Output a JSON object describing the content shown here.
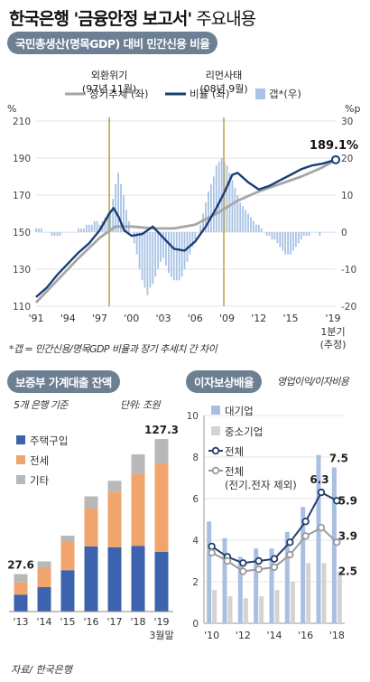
{
  "header": {
    "title_main": "한국은행 '금융안정 보고서'",
    "title_sub": " 주요내용"
  },
  "section1": {
    "pill": "국민총생산(명목GDP) 대비 민간신용 비율"
  },
  "section2": {
    "pill": "보증부 가계대출 잔액",
    "note": "5개 은행 기준",
    "unit": "단위: 조원"
  },
  "section3": {
    "pill": "이자보상배율",
    "note": "영업이익/이자비용"
  },
  "footnote": "*갭 = 민간신용/명목GDP 비율과 장기 추세치 간 차이",
  "source": "자료/ 한국은행",
  "chart_data": [
    {
      "type": "line",
      "legend": [
        "장기추세 (좌)",
        "비율 (좌)",
        "갭*(우)"
      ],
      "left_axis_label": "%",
      "right_axis_label": "%p",
      "ylim_left": [
        110,
        210
      ],
      "ylim_right": [
        -20,
        30
      ],
      "yticks_left": [
        "210",
        "190",
        "170",
        "150",
        "130",
        "110"
      ],
      "yticks_right": [
        "30",
        "20",
        "10",
        "0",
        "-10",
        "-20"
      ],
      "x_range": [
        1991,
        2019.25
      ],
      "x_ticks": [
        {
          "x": 1991,
          "label": "'91"
        },
        {
          "x": 1994,
          "label": "'94"
        },
        {
          "x": 1997,
          "label": "'97"
        },
        {
          "x": 2000,
          "label": "'00"
        },
        {
          "x": 2003,
          "label": "'03"
        },
        {
          "x": 2006,
          "label": "'06"
        },
        {
          "x": 2009,
          "label": "'09"
        },
        {
          "x": 2012,
          "label": "'12"
        },
        {
          "x": 2015,
          "label": "'15"
        },
        {
          "x": 2019,
          "label": "'19"
        }
      ],
      "x_extra_label": [
        "1분기",
        "(추정)"
      ],
      "events": [
        {
          "x": 1997.9,
          "label1": "외환위기",
          "label2": "(97년 11월)"
        },
        {
          "x": 2008.7,
          "label1": "리먼사태",
          "label2": "(08년 9월)"
        }
      ],
      "end_label": "189.1%",
      "trend": [
        [
          1991,
          112
        ],
        [
          1993,
          124
        ],
        [
          1995,
          136
        ],
        [
          1997,
          147
        ],
        [
          1998.5,
          153
        ],
        [
          2000,
          153
        ],
        [
          2002,
          152
        ],
        [
          2004,
          152
        ],
        [
          2006,
          154
        ],
        [
          2008,
          160
        ],
        [
          2010,
          167
        ],
        [
          2012,
          172
        ],
        [
          2014,
          176
        ],
        [
          2016,
          180
        ],
        [
          2018,
          185
        ],
        [
          2019.25,
          189
        ]
      ],
      "ratio": [
        [
          1991,
          115
        ],
        [
          1992,
          120
        ],
        [
          1993,
          127
        ],
        [
          1994,
          133
        ],
        [
          1995,
          139
        ],
        [
          1996,
          144
        ],
        [
          1997,
          151
        ],
        [
          1997.9,
          160
        ],
        [
          1998.3,
          163
        ],
        [
          1998.8,
          158
        ],
        [
          1999.3,
          151
        ],
        [
          2000,
          148
        ],
        [
          2001,
          149
        ],
        [
          2002,
          153
        ],
        [
          2003,
          147
        ],
        [
          2004,
          141
        ],
        [
          2005,
          140
        ],
        [
          2006,
          145
        ],
        [
          2007,
          153
        ],
        [
          2008,
          163
        ],
        [
          2008.8,
          172
        ],
        [
          2009.5,
          181
        ],
        [
          2010,
          182
        ],
        [
          2011,
          177
        ],
        [
          2012,
          173
        ],
        [
          2013,
          175
        ],
        [
          2014,
          178
        ],
        [
          2015,
          181
        ],
        [
          2016,
          184
        ],
        [
          2017,
          186
        ],
        [
          2018,
          187
        ],
        [
          2019.25,
          189.1
        ]
      ],
      "gap_start": 1991,
      "gap_step": 0.25,
      "gap": [
        1,
        1,
        1,
        0,
        0,
        0,
        -1,
        -1,
        -1,
        -1,
        0,
        0,
        0,
        0,
        0,
        0,
        1,
        1,
        1,
        2,
        2,
        2,
        3,
        3,
        2,
        3,
        4,
        5,
        6,
        9,
        13,
        16,
        13,
        10,
        6,
        3,
        0,
        -3,
        -6,
        -10,
        -13,
        -15,
        -17,
        -15,
        -14,
        -12,
        -10,
        -8,
        -7,
        -9,
        -11,
        -12,
        -13,
        -13,
        -13,
        -12,
        -10,
        -8,
        -6,
        -4,
        -2,
        0,
        2,
        5,
        8,
        11,
        13,
        15,
        18,
        19,
        20,
        19,
        18,
        16,
        14,
        12,
        10,
        8,
        7,
        6,
        5,
        4,
        3,
        2,
        2,
        1,
        0,
        -1,
        -1,
        -2,
        -2,
        -3,
        -4,
        -5,
        -6,
        -6,
        -6,
        -5,
        -4,
        -3,
        -2,
        -1,
        -1,
        -1,
        0,
        0,
        0,
        -1,
        0,
        0,
        0,
        0,
        0,
        0
      ]
    },
    {
      "type": "bar",
      "stacked": true,
      "categories": [
        "'13",
        "'14",
        "'15",
        "'16",
        "'17",
        "'18",
        "'19"
      ],
      "x_extra_label": "3월말",
      "series": [
        {
          "name": "주택구입",
          "color": "#3d63ae",
          "values": [
            12.5,
            18,
            30.5,
            48,
            47.5,
            48.5,
            44
          ]
        },
        {
          "name": "전세",
          "color": "#f1a46c",
          "values": [
            9,
            14,
            21.5,
            28,
            41,
            53,
            65
          ]
        },
        {
          "name": "기타",
          "color": "#b8b8b8",
          "values": [
            6.1,
            5,
            4,
            9,
            8,
            14.5,
            18.3
          ]
        }
      ],
      "ylim": [
        0,
        140
      ],
      "data_labels": [
        {
          "index": 0,
          "label": "27.6"
        },
        {
          "index": 6,
          "label": "127.3"
        }
      ]
    },
    {
      "type": "bar",
      "categories": [
        "'10",
        "'11",
        "'12",
        "'13",
        "'14",
        "'15",
        "'16",
        "'17",
        "'18"
      ],
      "ylim": [
        0,
        10
      ],
      "yticks": [
        "10",
        "8",
        "6",
        "4",
        "2",
        "0"
      ],
      "x_tick_labels": [
        {
          "index": 0,
          "label": "'10"
        },
        {
          "index": 2,
          "label": "'12"
        },
        {
          "index": 4,
          "label": "'14"
        },
        {
          "index": 6,
          "label": "'16"
        },
        {
          "index": 8,
          "label": "'18"
        }
      ],
      "bar_series": [
        {
          "name": "대기업",
          "color": "#a9bfe2",
          "values": [
            4.9,
            4.1,
            3.2,
            3.6,
            3.6,
            4.4,
            5.6,
            8.1,
            7.5
          ]
        },
        {
          "name": "중소기업",
          "color": "#d3d3d3",
          "values": [
            1.6,
            1.3,
            1.2,
            1.3,
            1.6,
            2.0,
            2.9,
            2.9,
            2.5
          ]
        }
      ],
      "line_series": [
        {
          "name": "전체",
          "color": "#243f6e",
          "values": [
            3.7,
            3.2,
            2.9,
            3.0,
            3.1,
            3.9,
            4.9,
            6.3,
            5.9
          ]
        },
        {
          "name": "전체",
          "name_line2": "(전기.전자 제외)",
          "color": "#9a9a9a",
          "values": [
            3.4,
            3.0,
            2.5,
            2.6,
            2.7,
            3.3,
            4.2,
            4.6,
            3.9
          ]
        }
      ],
      "value_labels": [
        {
          "text": "7.5",
          "series": "bar0",
          "index": 8
        },
        {
          "text": "6.3",
          "series": "line0",
          "index": 7
        },
        {
          "text": "5.9",
          "series": "line0",
          "index": 8
        },
        {
          "text": "3.9",
          "series": "line1",
          "index": 8
        },
        {
          "text": "2.5",
          "series": "bar1",
          "index": 8
        }
      ]
    }
  ]
}
